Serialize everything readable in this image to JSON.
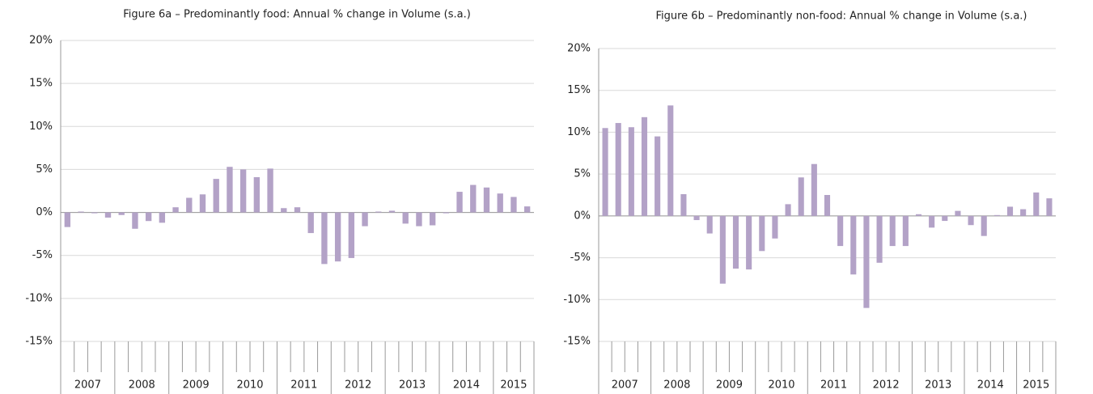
{
  "chart_data": [
    {
      "type": "bar",
      "title": "Figure 6a – Predominantly food: Annual % change in Volume (s.a.)",
      "categories": [
        "2007",
        null,
        null,
        null,
        "2008",
        null,
        null,
        null,
        "2009",
        null,
        null,
        null,
        "2010",
        null,
        null,
        null,
        "2011",
        null,
        null,
        null,
        "2012",
        null,
        null,
        null,
        "2013",
        null,
        null,
        null,
        "2014",
        null,
        null,
        null,
        "2015",
        null,
        null
      ],
      "values": [
        -1.7,
        0.1,
        -0.1,
        -0.6,
        -0.3,
        -1.9,
        -1.0,
        -1.2,
        0.6,
        1.7,
        2.1,
        3.9,
        5.3,
        5.0,
        4.1,
        5.1,
        0.5,
        0.6,
        -2.4,
        -6.0,
        -5.7,
        -5.3,
        -1.6,
        0.1,
        0.2,
        -1.3,
        -1.6,
        -1.5,
        -0.1,
        2.4,
        3.2,
        2.9,
        2.2,
        1.8,
        0.7
      ],
      "color": "#b3a2c7",
      "ylim": [
        -15,
        20
      ],
      "yticks": [
        {
          "value": -15,
          "label": "-15%"
        },
        {
          "value": -10,
          "label": "-10%"
        },
        {
          "value": -5,
          "label": "-5%"
        },
        {
          "value": 0,
          "label": "0%"
        },
        {
          "value": 5,
          "label": "5%"
        },
        {
          "value": 10,
          "label": "10%"
        },
        {
          "value": 15,
          "label": "15%"
        },
        {
          "value": 20,
          "label": "20%"
        }
      ],
      "grid": true
    },
    {
      "type": "bar",
      "title": "Figure 6b – Predominantly non-food: Annual % change in Volume (s.a.)",
      "categories": [
        "2007",
        null,
        null,
        null,
        "2008",
        null,
        null,
        null,
        "2009",
        null,
        null,
        null,
        "2010",
        null,
        null,
        null,
        "2011",
        null,
        null,
        null,
        "2012",
        null,
        null,
        null,
        "2013",
        null,
        null,
        null,
        "2014",
        null,
        null,
        null,
        "2015",
        null,
        null
      ],
      "values": [
        10.5,
        11.1,
        10.6,
        11.8,
        9.5,
        13.2,
        2.6,
        -0.5,
        -2.1,
        -8.1,
        -6.3,
        -6.4,
        -4.2,
        -2.7,
        1.4,
        4.6,
        6.2,
        2.5,
        -3.6,
        -7.0,
        -11.0,
        -5.6,
        -3.6,
        -3.6,
        0.2,
        -1.4,
        -0.6,
        0.6,
        -1.1,
        -2.4,
        0.1,
        1.1,
        0.8,
        2.8,
        2.1
      ],
      "color": "#b3a2c7",
      "ylim": [
        -15,
        20
      ],
      "yticks": [
        {
          "value": -15,
          "label": "-15%"
        },
        {
          "value": -10,
          "label": "-10%"
        },
        {
          "value": -5,
          "label": "-5%"
        },
        {
          "value": 0,
          "label": "0%"
        },
        {
          "value": 5,
          "label": "5%"
        },
        {
          "value": 10,
          "label": "10%"
        },
        {
          "value": 15,
          "label": "15%"
        },
        {
          "value": 20,
          "label": "20%"
        }
      ],
      "grid": true
    }
  ]
}
